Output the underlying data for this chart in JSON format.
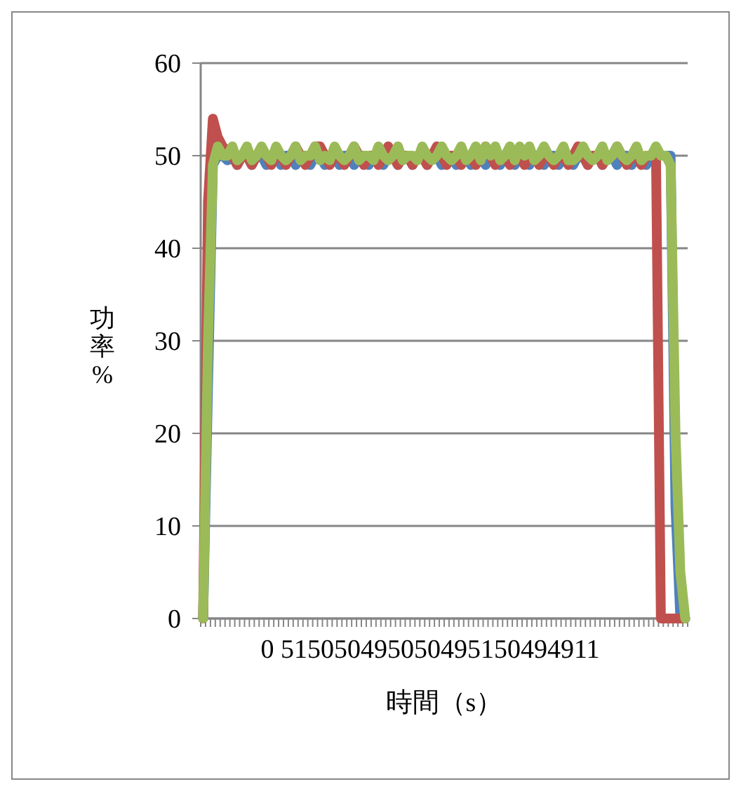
{
  "chart_data": {
    "type": "line",
    "xlabel": "時間（s）",
    "ylabel": "功率%",
    "categories": [
      null,
      null,
      null,
      null,
      null,
      null,
      null,
      null,
      null,
      null,
      null,
      null,
      null,
      null,
      null,
      null,
      null,
      null,
      null,
      null,
      null,
      null,
      null,
      null,
      null,
      null,
      null,
      null,
      null,
      null,
      null,
      null,
      null,
      null,
      null,
      null,
      null,
      null,
      null,
      null,
      null,
      null,
      null,
      null,
      null,
      null,
      null,
      null,
      null,
      null,
      null,
      null,
      null,
      null,
      null,
      null,
      null,
      null,
      null,
      null,
      null,
      null,
      null,
      null,
      null,
      null,
      null,
      null,
      null,
      null,
      null,
      null,
      null,
      null,
      null,
      null,
      null,
      null,
      null,
      null,
      null,
      null,
      null,
      null,
      null,
      null,
      null,
      null,
      null,
      null,
      null,
      null,
      null,
      null,
      null,
      null,
      null,
      null,
      null,
      null
    ],
    "series": [
      {
        "color": "#4f81bd",
        "values": [
          0,
          25,
          49,
          50,
          50,
          49.5,
          50,
          49,
          50,
          50,
          49,
          50,
          50,
          49,
          50,
          50,
          49,
          50,
          50,
          49,
          50,
          50,
          49,
          50,
          50,
          49,
          50,
          50,
          49,
          50,
          50,
          49,
          50,
          50,
          49,
          50,
          50,
          49,
          50,
          50,
          49,
          50,
          50,
          49,
          50,
          50,
          49,
          50,
          50,
          49,
          50,
          50,
          49,
          50,
          50,
          49,
          50,
          50,
          49,
          50,
          50,
          49,
          50,
          50,
          49,
          50,
          50,
          49,
          50,
          50,
          49,
          50,
          50,
          49,
          50,
          50,
          49,
          50,
          50,
          49,
          null,
          null,
          49,
          50,
          50,
          49,
          50,
          50,
          49,
          50,
          50,
          49,
          50,
          50,
          50,
          50,
          50,
          12,
          0,
          0
        ]
      },
      {
        "color": "#c0504d",
        "values": [
          0,
          45,
          54,
          52,
          51,
          50.5,
          50,
          49,
          50,
          50,
          49,
          50,
          null,
          50,
          49,
          50,
          50,
          49,
          50,
          51,
          50,
          49,
          50,
          51,
          51,
          50,
          49,
          50,
          50,
          49,
          50,
          51,
          50,
          49,
          50,
          50,
          49,
          50,
          51,
          50,
          49,
          50,
          50,
          49,
          50,
          50,
          49,
          50,
          51,
          50,
          49,
          50,
          50,
          49,
          50,
          50,
          49,
          50,
          51,
          50,
          49,
          50,
          50,
          49,
          50,
          50,
          49,
          50,
          50,
          49,
          50,
          50,
          49,
          50,
          50,
          49,
          50,
          51,
          50,
          49,
          50,
          50,
          49,
          50,
          50,
          51,
          50,
          49,
          50,
          50,
          49,
          50,
          50,
          50,
          0,
          0,
          0,
          0,
          0,
          0
        ]
      },
      {
        "color": "#9bbb59",
        "values": [
          0,
          30,
          49,
          51,
          50,
          50,
          51,
          49.5,
          50,
          51,
          49.5,
          50,
          51,
          50,
          49.5,
          51,
          50,
          49.5,
          50,
          51,
          49.5,
          50,
          50,
          51,
          49.5,
          50,
          49.5,
          51,
          50,
          49.5,
          50,
          51,
          49.5,
          50,
          50,
          49.5,
          51,
          50,
          49.5,
          50,
          51,
          49.5,
          50,
          50,
          49.5,
          51,
          50,
          49.5,
          50,
          51,
          50,
          49.5,
          50,
          51,
          49.5,
          50,
          51,
          49.5,
          51,
          50,
          51,
          49.5,
          50,
          51,
          49.5,
          51,
          50,
          51,
          49.5,
          50,
          51,
          50,
          49.5,
          50,
          51,
          49.5,
          49.5,
          50,
          51,
          50,
          49.5,
          50,
          51,
          49.5,
          50,
          51,
          50,
          49.5,
          50,
          51,
          49.5,
          50,
          50,
          51,
          50,
          50,
          49,
          20,
          5,
          0
        ]
      }
    ],
    "ylim": [
      0,
      60
    ],
    "yticks": [
      0,
      10,
      20,
      30,
      40,
      50,
      60
    ],
    "grid": "y",
    "annotations": [
      "0 515050495050495150494911"
    ]
  }
}
